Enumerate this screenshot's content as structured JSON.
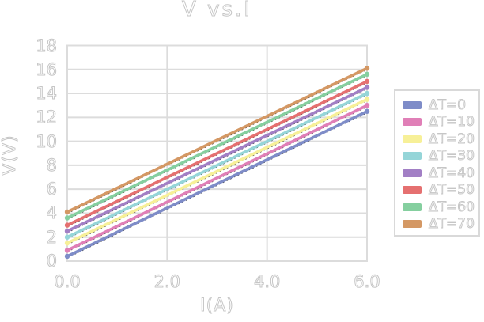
{
  "chart": {
    "title": "V vs.I",
    "xlabel": "I(A)",
    "ylabel": "V(V)"
  },
  "chart_data": {
    "type": "line",
    "title": "V vs.I",
    "xlabel": "I(A)",
    "ylabel": "V(V)",
    "x": [
      0,
      6
    ],
    "series": [
      {
        "name": "ΔT=0",
        "color": "#7e8cc8",
        "values": [
          0.4,
          12.5
        ]
      },
      {
        "name": "ΔT=10",
        "color": "#e07fb7",
        "values": [
          0.9,
          13.0
        ]
      },
      {
        "name": "ΔT=20",
        "color": "#f7f098",
        "values": [
          1.5,
          13.5
        ]
      },
      {
        "name": "ΔT=30",
        "color": "#95d5d8",
        "values": [
          2.0,
          14.0
        ]
      },
      {
        "name": "ΔT=40",
        "color": "#a27fc5",
        "values": [
          2.5,
          14.5
        ]
      },
      {
        "name": "ΔT=50",
        "color": "#e57070",
        "values": [
          3.0,
          15.0
        ]
      },
      {
        "name": "ΔT=60",
        "color": "#85cf9f",
        "values": [
          3.6,
          15.6
        ]
      },
      {
        "name": "ΔT=70",
        "color": "#d49864",
        "values": [
          4.1,
          16.1
        ]
      }
    ],
    "trendlines": {
      "present": true,
      "style": "dotted",
      "color": "#2a2a2a"
    },
    "xlim": [
      0,
      6
    ],
    "ylim": [
      0,
      18
    ],
    "xticks": {
      "values": [
        0,
        2,
        4,
        6
      ],
      "labels": [
        "0.0",
        "2.0",
        "4.0",
        "6.0"
      ]
    },
    "yticks": {
      "values": [
        0,
        2,
        4,
        6,
        8,
        10,
        12,
        14,
        16,
        18
      ],
      "labels": [
        "0",
        "2",
        "4",
        "6",
        "8",
        "10",
        "12",
        "14",
        "16",
        "18"
      ]
    },
    "grid": true,
    "grid_color": "#dcdcdc",
    "legend_position": "right"
  },
  "legend": {
    "items": [
      "ΔT=0",
      "ΔT=10",
      "ΔT=20",
      "ΔT=30",
      "ΔT=40",
      "ΔT=50",
      "ΔT=60",
      "ΔT=70"
    ]
  }
}
